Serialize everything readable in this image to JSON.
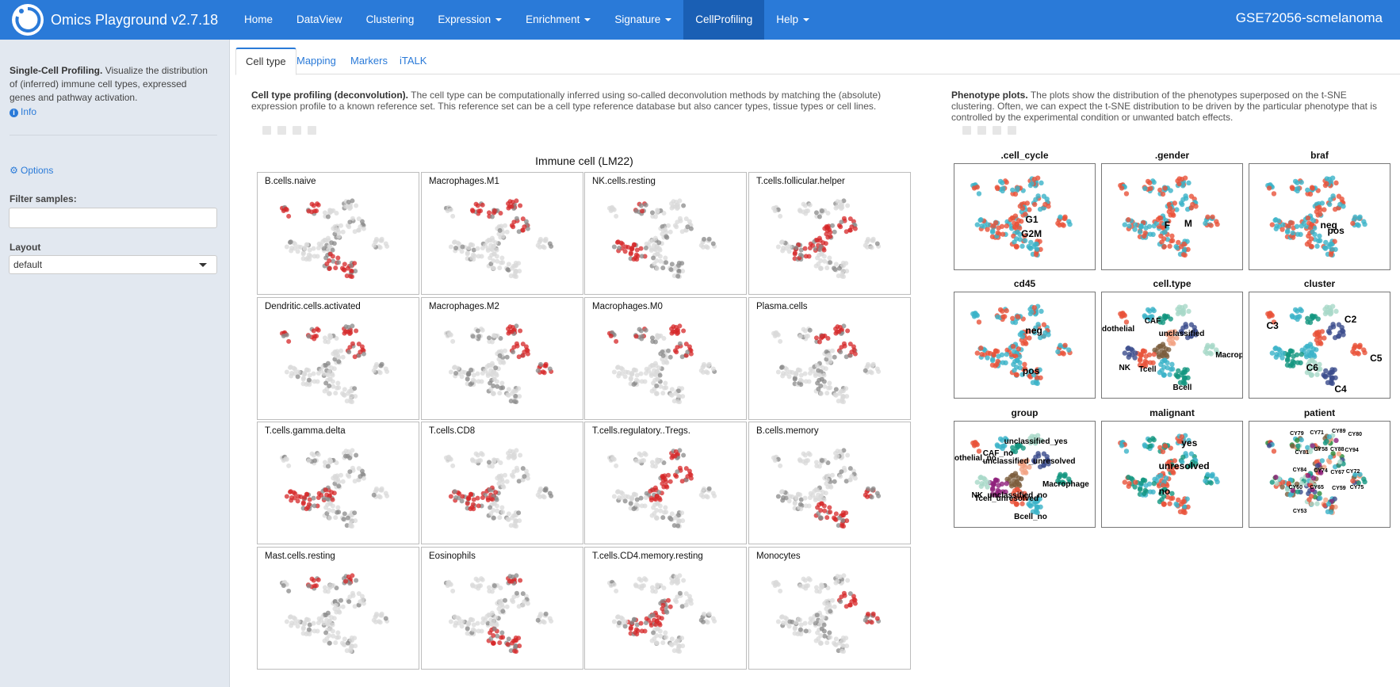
{
  "app": {
    "title": "Omics Playground v2.7.18",
    "dataset": "GSE72056-scmelanoma",
    "nav": [
      {
        "label": "Home",
        "dropdown": false,
        "active": false
      },
      {
        "label": "DataView",
        "dropdown": false,
        "active": false
      },
      {
        "label": "Clustering",
        "dropdown": false,
        "active": false
      },
      {
        "label": "Expression",
        "dropdown": true,
        "active": false
      },
      {
        "label": "Enrichment",
        "dropdown": true,
        "active": false
      },
      {
        "label": "Signature",
        "dropdown": true,
        "active": false
      },
      {
        "label": "CellProfiling",
        "dropdown": false,
        "active": true
      },
      {
        "label": "Help",
        "dropdown": true,
        "active": false
      }
    ]
  },
  "sidebar": {
    "title": "Single-Cell Profiling.",
    "description": "Visualize the distribution of (inferred) immune cell types, expressed genes and pathway activation.",
    "info": "Info",
    "options": "Options",
    "filter_label": "Filter samples:",
    "filter_value": "",
    "layout_label": "Layout",
    "layout_value": "default"
  },
  "tabs": [
    {
      "label": "Cell type",
      "active": true
    },
    {
      "label": "Mapping",
      "active": false
    },
    {
      "label": "Markers",
      "active": false
    },
    {
      "label": "iTALK",
      "active": false
    }
  ],
  "left": {
    "heading": "Cell type profiling (deconvolution).",
    "text": "The cell type can be computationally inferred using so-called deconvolution methods by matching the (absolute) expression profile to a known reference set. This reference set can be a cell type reference database but also cancer types, tissue types or cell lines.",
    "figure_title": "Immune cell (LM22)",
    "panels": [
      "B.cells.naive",
      "Macrophages.M1",
      "NK.cells.resting",
      "T.cells.follicular.helper",
      "Dendritic.cells.activated",
      "Macrophages.M2",
      "Macrophages.M0",
      "Plasma.cells",
      "T.cells.gamma.delta",
      "T.cells.CD8",
      "T.cells.regulatory..Tregs.",
      "B.cells.memory",
      "Mast.cells.resting",
      "Eosinophils",
      "T.cells.CD4.memory.resting",
      "Monocytes"
    ]
  },
  "right": {
    "heading": "Phenotype plots.",
    "text": "The plots show the distribution of the phenotypes superposed on the t-SNE clustering. Often, we can expect the t-SNE distribution to be driven by the particular phenotype that is controlled by the experimental condition or unwanted batch effects.",
    "panels": [
      {
        "title": ".cell_cycle",
        "labels": [
          "G1",
          "G2M"
        ]
      },
      {
        "title": ".gender",
        "labels": [
          "F",
          "M"
        ]
      },
      {
        "title": "braf",
        "labels": [
          "neg",
          "pos"
        ]
      },
      {
        "title": "cd45",
        "labels": [
          "neg",
          "pos"
        ]
      },
      {
        "title": "cell.type",
        "labels": [
          "dothelial",
          "CAF",
          "unclassified",
          "Macrophag",
          "NK",
          "Tcell",
          "Bcell"
        ]
      },
      {
        "title": "cluster",
        "labels": [
          "C3",
          "C2",
          "C5",
          "C6",
          "C4"
        ]
      },
      {
        "title": "group",
        "labels": [
          "unclassified_yes",
          "CAF_no",
          "othelial_no",
          "unclassified_unresolved",
          "Macrophage",
          "NK_unclassified_no",
          "Tcell_unresolved",
          "Bcell_no"
        ]
      },
      {
        "title": "malignant",
        "labels": [
          "yes",
          "unresolved",
          "no"
        ]
      },
      {
        "title": "patient",
        "labels": [
          "CY79",
          "CY71",
          "CY89",
          "CY80",
          "CY81",
          "CY58",
          "CY88",
          "CY94",
          "CY84",
          "CY74",
          "CY67",
          "CY72",
          "CY60",
          "CY65",
          "CY59",
          "CY75",
          "CY53"
        ]
      }
    ]
  },
  "colors": {
    "navbar": "#2a7ad8",
    "navbar_active": "#1a5fb4",
    "sidebar": "#e2e8f0",
    "accent": "#2a7ad8",
    "high_expr": "#d62728",
    "mid_expr": "#8a8a8a",
    "low_expr": "#d9d9d9",
    "palette": [
      "#e8533a",
      "#3bb3c8",
      "#13967f",
      "#a8d8c8",
      "#3b4c8c",
      "#f2a383",
      "#7a5c3c",
      "#8e1f7a",
      "#2a8a3a"
    ]
  }
}
